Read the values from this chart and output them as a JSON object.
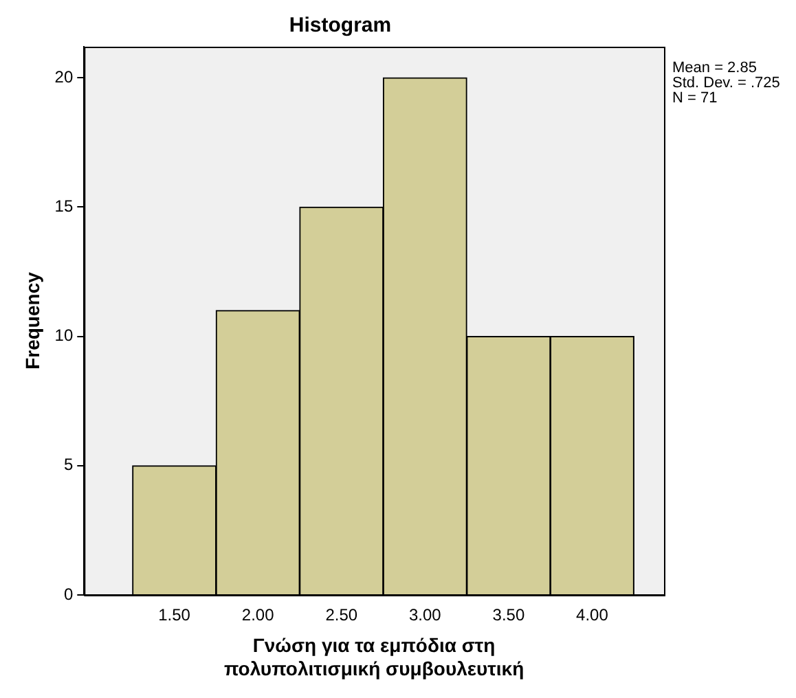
{
  "chart_data": {
    "type": "histogram",
    "title": "Histogram",
    "xlabel": "Γνώση για τα εμπόδια στη πολυπολιτισμική συμβουλευτική",
    "ylabel": "Frequency",
    "bins": [
      1.25,
      1.75,
      2.25,
      2.75,
      3.25,
      3.75,
      4.25
    ],
    "values": [
      5,
      11,
      15,
      20,
      10,
      10
    ],
    "color": "#d3ce98",
    "xlim": [
      0.96,
      4.43
    ],
    "xticks": [
      {
        "value": 1.5,
        "label": "1.50"
      },
      {
        "value": 2,
        "label": "2.00"
      },
      {
        "value": 2.5,
        "label": "2.50"
      },
      {
        "value": 3,
        "label": "3.00"
      },
      {
        "value": 3.5,
        "label": "3.50"
      },
      {
        "value": 4,
        "label": "4.00"
      }
    ],
    "ylim": [
      0,
      21.2
    ],
    "yticks": [
      0,
      5,
      10,
      15,
      20
    ],
    "grid": false,
    "legend": false,
    "annotations": [
      "Mean = 2.85",
      "Std. Dev. = .725",
      "N = 71"
    ]
  }
}
